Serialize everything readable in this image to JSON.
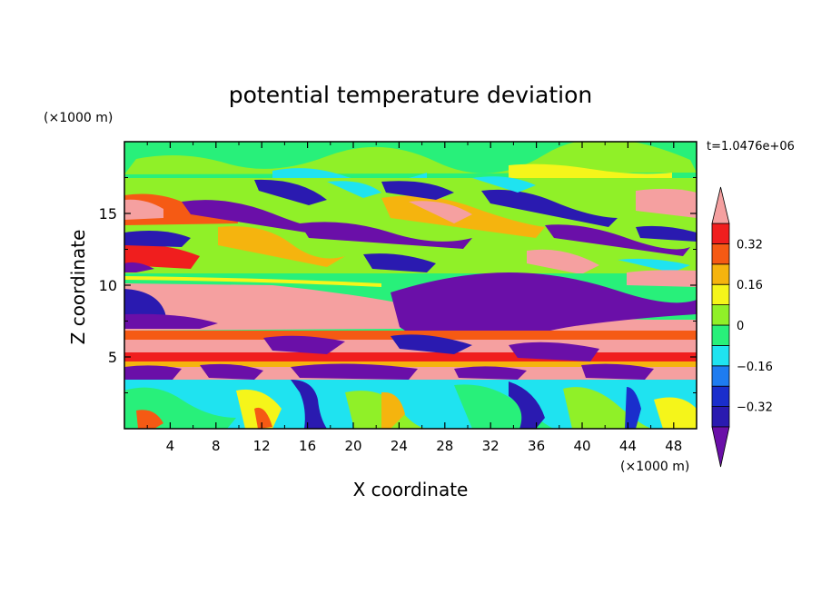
{
  "chart_data": {
    "type": "heatmap",
    "title": "potential temperature deviation",
    "xlabel": "X coordinate",
    "ylabel": "Z coordinate",
    "x_unit": "(×1000 m)",
    "y_unit": "(×1000 m)",
    "time_label": "t=1.0476e+06",
    "xlim": [
      0,
      50
    ],
    "ylim": [
      0,
      20
    ],
    "x_ticks": [
      "4",
      "8",
      "12",
      "16",
      "20",
      "24",
      "28",
      "32",
      "36",
      "40",
      "44",
      "48"
    ],
    "y_ticks": [
      "5",
      "10",
      "15"
    ],
    "colorbar": {
      "levels": [
        -0.4,
        -0.32,
        -0.24,
        -0.16,
        -0.08,
        0,
        0.08,
        0.16,
        0.24,
        0.32,
        0.4
      ],
      "tick_labels": [
        "0.32",
        "0.16",
        "0",
        "−0.16",
        "−0.32"
      ],
      "tick_values": [
        0.32,
        0.16,
        0,
        -0.16,
        -0.32
      ],
      "colors": [
        "#6a0fa8",
        "#2a1ab0",
        "#1a2ecc",
        "#1e7cf0",
        "#1fe3f0",
        "#28f07a",
        "#90f028",
        "#f5f51a",
        "#f5b40e",
        "#f55a14",
        "#f01e1e",
        "#f5a0a0"
      ],
      "extend": "both"
    },
    "bands": [
      {
        "z_range": [
          0.2,
          3.6
        ],
        "description": "mixed cyan/green/yellow convective plumes"
      },
      {
        "z_range": [
          3.6,
          4.2
        ],
        "value": -0.38
      },
      {
        "z_range": [
          4.2,
          4.9
        ],
        "value": 0.4
      },
      {
        "z_range": [
          4.9,
          5.6
        ],
        "value": 0.3
      },
      {
        "z_range": [
          5.6,
          6.6
        ],
        "value": 0.4
      },
      {
        "z_range": [
          6.6,
          7.2
        ],
        "value": 0.3
      },
      {
        "z_range": [
          7.2,
          10.2
        ],
        "value": 0.42
      },
      {
        "z_range": [
          10.2,
          17.5
        ],
        "description": "tilted negative/positive streaks"
      },
      {
        "z_range": [
          17.5,
          20
        ],
        "value": 0.0
      }
    ]
  }
}
